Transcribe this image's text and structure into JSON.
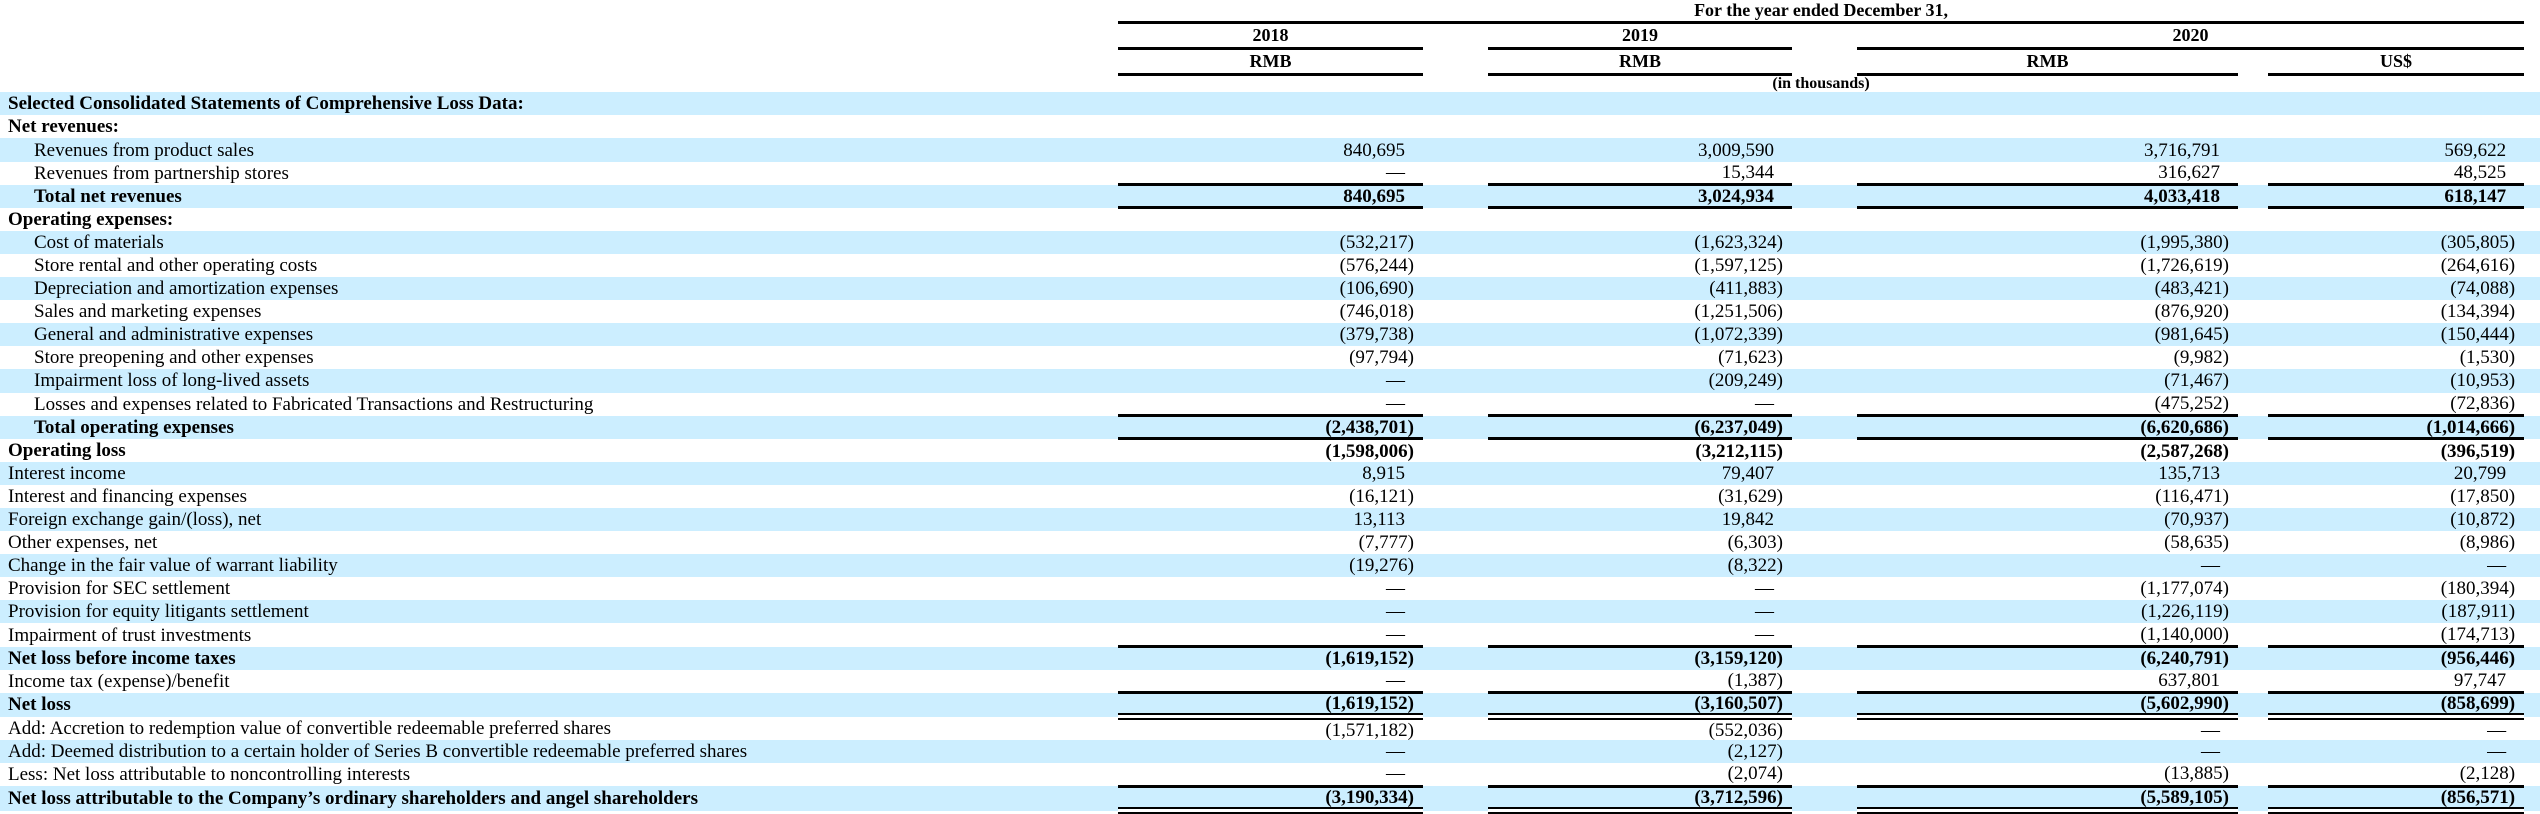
{
  "colors": {
    "row_shade": "#CCEEFF"
  },
  "header": {
    "title": "For the year ended December 31,",
    "years": [
      "2018",
      "2019",
      "2020"
    ],
    "currencies": [
      "RMB",
      "RMB",
      "RMB",
      "US$"
    ],
    "units_note": "(in thousands)"
  },
  "rows": [
    {
      "label": "Selected Consolidated Statements of Comprehensive Loss Data:",
      "bold": true,
      "indent": 0,
      "values": [
        "",
        "",
        "",
        ""
      ],
      "rule_above": false,
      "rule_below": null
    },
    {
      "label": "Net revenues:",
      "bold": true,
      "indent": 0,
      "values": [
        "",
        "",
        "",
        ""
      ],
      "rule_above": false,
      "rule_below": null
    },
    {
      "label": "Revenues from product sales",
      "bold": false,
      "indent": 1,
      "values": [
        "840,695",
        "3,009,590",
        "3,716,791",
        "569,622"
      ],
      "rule_above": false,
      "rule_below": null
    },
    {
      "label": "Revenues from partnership stores",
      "bold": false,
      "indent": 1,
      "values": [
        "—",
        "15,344",
        "316,627",
        "48,525"
      ],
      "rule_above": false,
      "rule_below": null
    },
    {
      "label": "Total net revenues",
      "bold": true,
      "indent": 1,
      "values": [
        "840,695",
        "3,024,934",
        "4,033,418",
        "618,147"
      ],
      "rule_above": true,
      "rule_below": "single"
    },
    {
      "label": "Operating expenses:",
      "bold": true,
      "indent": 0,
      "values": [
        "",
        "",
        "",
        ""
      ],
      "rule_above": false,
      "rule_below": null
    },
    {
      "label": "Cost of materials",
      "bold": false,
      "indent": 1,
      "values": [
        "(532,217)",
        "(1,623,324)",
        "(1,995,380)",
        "(305,805)"
      ],
      "rule_above": false,
      "rule_below": null
    },
    {
      "label": "Store rental and other operating costs",
      "bold": false,
      "indent": 1,
      "values": [
        "(576,244)",
        "(1,597,125)",
        "(1,726,619)",
        "(264,616)"
      ],
      "rule_above": false,
      "rule_below": null
    },
    {
      "label": "Depreciation and amortization expenses",
      "bold": false,
      "indent": 1,
      "values": [
        "(106,690)",
        "(411,883)",
        "(483,421)",
        "(74,088)"
      ],
      "rule_above": false,
      "rule_below": null
    },
    {
      "label": "Sales and marketing expenses",
      "bold": false,
      "indent": 1,
      "values": [
        "(746,018)",
        "(1,251,506)",
        "(876,920)",
        "(134,394)"
      ],
      "rule_above": false,
      "rule_below": null
    },
    {
      "label": "General and administrative expenses",
      "bold": false,
      "indent": 1,
      "values": [
        "(379,738)",
        "(1,072,339)",
        "(981,645)",
        "(150,444)"
      ],
      "rule_above": false,
      "rule_below": null
    },
    {
      "label": "Store preopening and other expenses",
      "bold": false,
      "indent": 1,
      "values": [
        "(97,794)",
        "(71,623)",
        "(9,982)",
        "(1,530)"
      ],
      "rule_above": false,
      "rule_below": null
    },
    {
      "label": "Impairment loss of long-lived assets",
      "bold": false,
      "indent": 1,
      "values": [
        "—",
        "(209,249)",
        "(71,467)",
        "(10,953)"
      ],
      "rule_above": false,
      "rule_below": null
    },
    {
      "label": "Losses and expenses related to Fabricated Transactions and Restructuring",
      "bold": false,
      "indent": 1,
      "values": [
        "—",
        "—",
        "(475,252)",
        "(72,836)"
      ],
      "rule_above": false,
      "rule_below": null
    },
    {
      "label": "Total operating expenses",
      "bold": true,
      "indent": 1,
      "values": [
        "(2,438,701)",
        "(6,237,049)",
        "(6,620,686)",
        "(1,014,666)"
      ],
      "rule_above": true,
      "rule_below": "single"
    },
    {
      "label": "Operating loss",
      "bold": true,
      "indent": 0,
      "values": [
        "(1,598,006)",
        "(3,212,115)",
        "(2,587,268)",
        "(396,519)"
      ],
      "rule_above": false,
      "rule_below": null
    },
    {
      "label": "Interest income",
      "bold": false,
      "indent": 0,
      "values": [
        "8,915",
        "79,407",
        "135,713",
        "20,799"
      ],
      "rule_above": false,
      "rule_below": null
    },
    {
      "label": "Interest and financing expenses",
      "bold": false,
      "indent": 0,
      "values": [
        "(16,121)",
        "(31,629)",
        "(116,471)",
        "(17,850)"
      ],
      "rule_above": false,
      "rule_below": null
    },
    {
      "label": "Foreign exchange gain/(loss), net",
      "bold": false,
      "indent": 0,
      "values": [
        "13,113",
        "19,842",
        "(70,937)",
        "(10,872)"
      ],
      "rule_above": false,
      "rule_below": null
    },
    {
      "label": "Other expenses, net",
      "bold": false,
      "indent": 0,
      "values": [
        "(7,777)",
        "(6,303)",
        "(58,635)",
        "(8,986)"
      ],
      "rule_above": false,
      "rule_below": null
    },
    {
      "label": "Change in the fair value of warrant liability",
      "bold": false,
      "indent": 0,
      "values": [
        "(19,276)",
        "(8,322)",
        "—",
        "—"
      ],
      "rule_above": false,
      "rule_below": null
    },
    {
      "label": "Provision for SEC settlement",
      "bold": false,
      "indent": 0,
      "values": [
        "—",
        "—",
        "(1,177,074)",
        "(180,394)"
      ],
      "rule_above": false,
      "rule_below": null
    },
    {
      "label": "Provision for equity litigants settlement",
      "bold": false,
      "indent": 0,
      "values": [
        "—",
        "—",
        "(1,226,119)",
        "(187,911)"
      ],
      "rule_above": false,
      "rule_below": null
    },
    {
      "label": "Impairment of trust investments",
      "bold": false,
      "indent": 0,
      "values": [
        "—",
        "—",
        "(1,140,000)",
        "(174,713)"
      ],
      "rule_above": false,
      "rule_below": null
    },
    {
      "label": "Net loss before income taxes",
      "bold": true,
      "indent": 0,
      "values": [
        "(1,619,152)",
        "(3,159,120)",
        "(6,240,791)",
        "(956,446)"
      ],
      "rule_above": true,
      "rule_below": null
    },
    {
      "label": "Income tax (expense)/benefit",
      "bold": false,
      "indent": 0,
      "values": [
        "—",
        "(1,387)",
        "637,801",
        "97,747"
      ],
      "rule_above": false,
      "rule_below": null
    },
    {
      "label": "Net loss",
      "bold": true,
      "indent": 0,
      "values": [
        "(1,619,152)",
        "(3,160,507)",
        "(5,602,990)",
        "(858,699)"
      ],
      "rule_above": true,
      "rule_below": "double"
    },
    {
      "label": "Add: Accretion to redemption value of convertible redeemable preferred shares",
      "bold": false,
      "indent": 0,
      "values": [
        "(1,571,182)",
        "(552,036)",
        "—",
        "—"
      ],
      "rule_above": false,
      "rule_below": null
    },
    {
      "label": "Add: Deemed distribution to a certain holder of Series B convertible redeemable preferred shares",
      "bold": false,
      "indent": 0,
      "values": [
        "—",
        "(2,127)",
        "—",
        "—"
      ],
      "rule_above": false,
      "rule_below": null
    },
    {
      "label": "Less: Net loss attributable to noncontrolling interests",
      "bold": false,
      "indent": 0,
      "values": [
        "—",
        "(2,074)",
        "(13,885)",
        "(2,128)"
      ],
      "rule_above": false,
      "rule_below": null
    },
    {
      "label": "Net loss attributable to the Company’s ordinary shareholders and angel shareholders",
      "bold": true,
      "indent": 0,
      "values": [
        "(3,190,334)",
        "(3,712,596)",
        "(5,589,105)",
        "(856,571)"
      ],
      "rule_above": true,
      "rule_below": "double"
    }
  ]
}
